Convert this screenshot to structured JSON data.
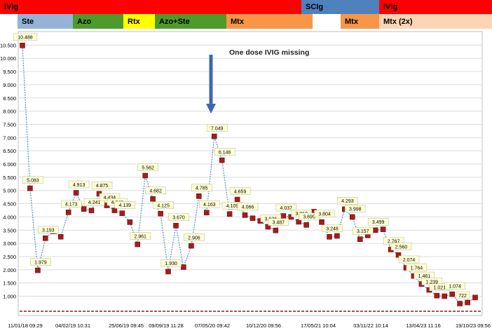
{
  "chart_data": {
    "type": "line",
    "title": "",
    "xlabel": "",
    "ylabel": "",
    "ylim": [
      0,
      10600
    ],
    "grid": true,
    "y_ticks": [
      "1.000",
      "1.500",
      "2.000",
      "2.500",
      "3.000",
      "3.500",
      "4.000",
      "4.500",
      "5.000",
      "5.500",
      "6.000",
      "6.500",
      "7.000",
      "7.500",
      "8.000",
      "8.500",
      "9.000",
      "9.500",
      "10.000",
      "10.500"
    ],
    "x_tick_labels": [
      "11/01/18 09:29",
      "04/02/19 10:31",
      "25/06/19 09:45",
      "09/09/19 11:28",
      "07/05/20 09:42",
      "10/12/20 09:56",
      "17/05/21 10:04",
      "03/11/22 10:14",
      "13/04/23 11:16",
      "19/10/23 09:56"
    ],
    "series": [
      {
        "values": [
          10488,
          5083,
          1979,
          3193,
          3450,
          3250,
          4173,
          4913,
          4300,
          4241,
          4875,
          4434,
          4248,
          4139,
          3800,
          2961,
          5562,
          4682,
          4125,
          1930,
          3670,
          2100,
          2906,
          4785,
          4163,
          7049,
          6146,
          4109,
          4659,
          4066,
          3950,
          3850,
          3626,
          3487,
          4037,
          4000,
          3813,
          3695,
          4200,
          3804,
          3248,
          3280,
          4293,
          3998,
          3157,
          3300,
          3499,
          3530,
          2767,
          2560,
          2074,
          1764,
          1461,
          1239,
          1021,
          1000,
          1074,
          722,
          760,
          950
        ],
        "labels": [
          "10.488",
          "5.083",
          "1.979",
          "3.193",
          "",
          "",
          "4.173",
          "4.913",
          "",
          "4.241",
          "4.875",
          "4.434",
          "4.248",
          "4.139",
          "",
          "2.961",
          "5.562",
          "4.682",
          "4.125",
          "1.930",
          "3.670",
          "",
          "2.906",
          "4.785",
          "4.163",
          "7.049",
          "6.146",
          "4.109",
          "4.659",
          "4.066",
          "",
          "",
          "3.626",
          "3.487",
          "4.037",
          "",
          "3.813",
          "3.695",
          "",
          "3.804",
          "3.248",
          "",
          "4.293",
          "3.998",
          "3.157",
          "",
          "3.499",
          "",
          "2.767",
          "2.560",
          "2.074",
          "1.764",
          "1.461",
          "1.239",
          "1.021",
          "",
          "1.074",
          "722",
          "",
          ""
        ]
      }
    ],
    "annotation": "One dose IVIG missing"
  },
  "bands": {
    "top": [
      {
        "label": "IVIg",
        "color": "#ff0000"
      },
      {
        "label": "SCIg",
        "color": "#4f81bd"
      },
      {
        "label": "IVIg",
        "color": "#ff0000"
      }
    ],
    "bottom": [
      {
        "label": "Ste",
        "color": "#95b3d7"
      },
      {
        "label": "Azo",
        "color": "#4e9a2a"
      },
      {
        "label": "Rtx",
        "color": "#ffff00"
      },
      {
        "label": "Azo+Ste",
        "color": "#4e9a2a"
      },
      {
        "label": "Mtx",
        "color": "#f79646"
      },
      {
        "label": "Mtx",
        "color": "#f79646"
      },
      {
        "label": "Mtx (2x)",
        "color": "#fcd5b4"
      }
    ]
  }
}
